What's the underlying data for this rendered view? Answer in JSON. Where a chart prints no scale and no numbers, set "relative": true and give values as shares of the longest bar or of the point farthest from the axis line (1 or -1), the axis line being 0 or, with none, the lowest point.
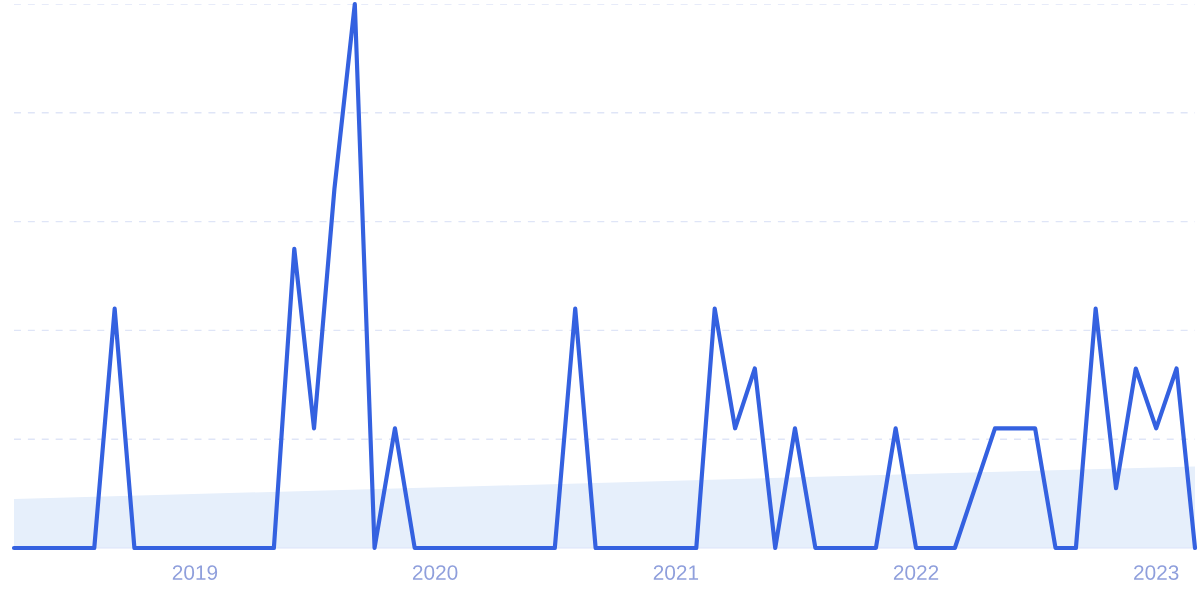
{
  "chart_data": {
    "type": "line",
    "relative": true,
    "grid": "y",
    "xlim": [
      "2018-04",
      "2023-03"
    ],
    "xticks": [
      {
        "value": "2019-01",
        "label": "2019"
      },
      {
        "value": "2020-01",
        "label": "2020"
      },
      {
        "value": "2021-01",
        "label": "2021"
      },
      {
        "value": "2022-01",
        "label": "2022"
      },
      {
        "value": "2023-01",
        "label": "2023"
      }
    ],
    "series": [
      {
        "type": "area",
        "color": "#e6effb",
        "x": [
          "2018-04",
          "2023-03"
        ],
        "values": [
          0.09,
          0.15
        ]
      },
      {
        "color": "#3461e0",
        "x": [
          "2018-04",
          "2018-08",
          "2018-09",
          "2018-10",
          "2019-05",
          "2019-06",
          "2019-07",
          "2019-08",
          "2019-09",
          "2019-10",
          "2019-11",
          "2019-12",
          "2020-07",
          "2020-08",
          "2020-09",
          "2021-02",
          "2021-03",
          "2021-04",
          "2021-05",
          "2021-06",
          "2021-07",
          "2021-08",
          "2021-11",
          "2021-12",
          "2022-01",
          "2022-03",
          "2022-05",
          "2022-06",
          "2022-07",
          "2022-08",
          "2022-09",
          "2022-10",
          "2022-11",
          "2022-12",
          "2023-01",
          "2023-02",
          "2023-03"
        ],
        "values": [
          0,
          0,
          0.44,
          0,
          0,
          0.55,
          0.22,
          0.66,
          1,
          0,
          0.22,
          0,
          0,
          0.44,
          0,
          0,
          0.44,
          0.22,
          0.33,
          0,
          0.22,
          0,
          0,
          0.22,
          0,
          0,
          0.22,
          0.22,
          0.22,
          0,
          0,
          0.44,
          0.11,
          0.33,
          0.22,
          0.33,
          0
        ]
      }
    ]
  }
}
